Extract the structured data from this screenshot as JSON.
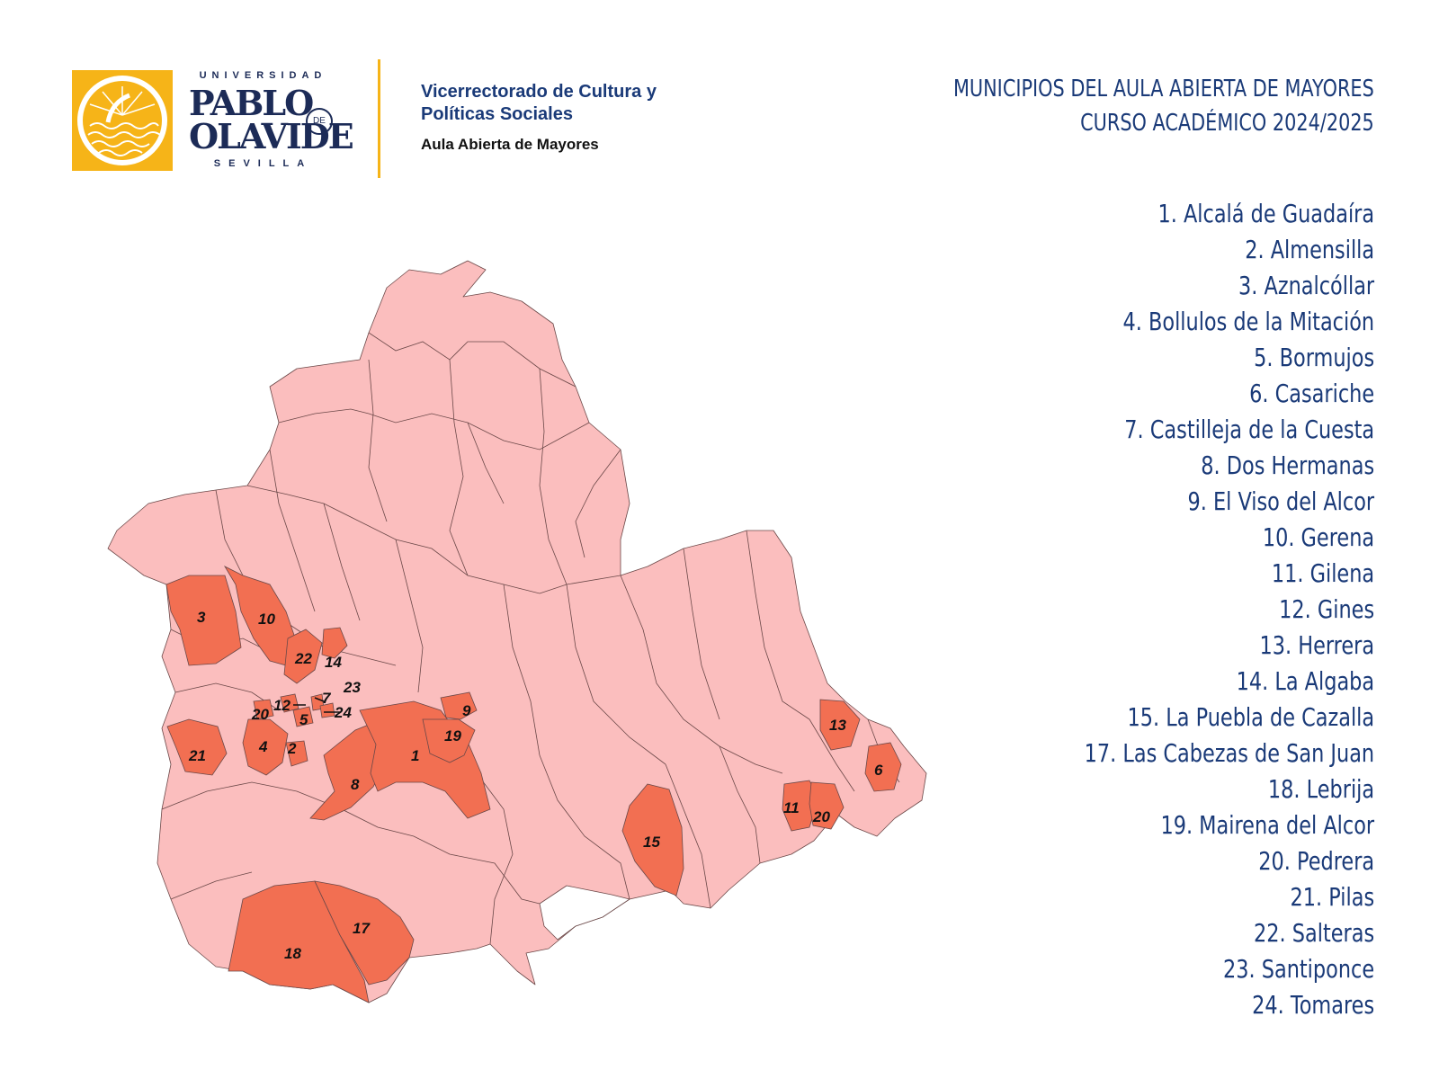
{
  "header": {
    "logo": {
      "top_text": "UNIVERSIDAD",
      "main_line1": "PABLO",
      "de": "DE",
      "main_line2": "OLAVIDE",
      "bottom_text": "SEVILLA"
    },
    "department_line1": "Vicerrectorado de Cultura y",
    "department_line2": "Políticas Sociales",
    "department_sub": "Aula Abierta de Mayores",
    "title_line1": "MUNICIPIOS DEL AULA ABIERTA DE MAYORES",
    "title_line2": "CURSO ACADÉMICO 2024/2025"
  },
  "colors": {
    "base_municipality": "#fbbebe",
    "highlight_municipality": "#f26f52",
    "border": "#6b4848",
    "logo_gold": "#f6b418",
    "navy": "#1a3a78"
  },
  "legend": [
    "1. Alcalá de Guadaíra",
    "2. Almensilla",
    "3. Aznalcóllar",
    "4. Bollulos de la Mitación",
    "5. Bormujos",
    "6. Casariche",
    "7. Castilleja de la Cuesta",
    "8. Dos Hermanas",
    "9. El Viso del Alcor",
    "10. Gerena",
    "11. Gilena",
    "12. Gines",
    "13. Herrera",
    "14. La Algaba",
    "15. La Puebla de Cazalla",
    "17. Las Cabezas de San Juan",
    "18. Lebrija",
    "19. Mairena del Alcor",
    "20. Pedrera",
    "21. Pilas",
    "22. Salteras",
    "23. Santiponce",
    "24. Tomares"
  ],
  "map_labels": [
    "1",
    "2",
    "3",
    "4",
    "5",
    "6",
    "7",
    "8",
    "9",
    "10",
    "11",
    "12",
    "13",
    "14",
    "15",
    "17",
    "18",
    "19",
    "20",
    "21",
    "22",
    "23",
    "24"
  ]
}
